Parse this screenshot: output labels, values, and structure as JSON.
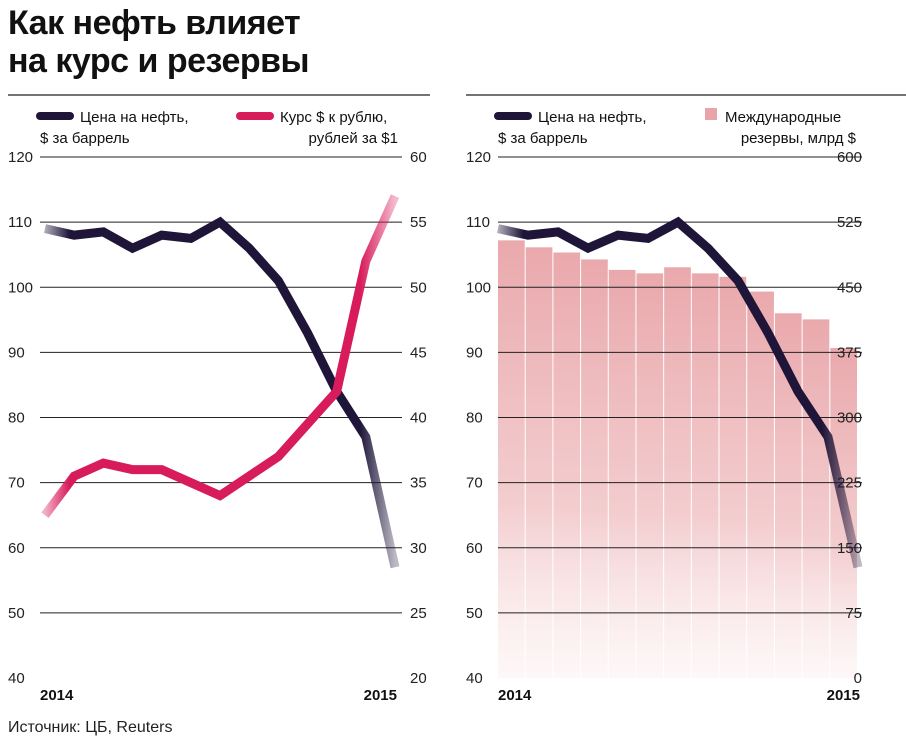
{
  "title_line1": "Как нефть влияет",
  "title_line2": "на курс и резервы",
  "source": "Источник: ЦБ, Reuters",
  "colors": {
    "oil": "#1e1538",
    "rate": "#d81b5a",
    "reserves": "#e8a4a8",
    "grid": "#222222"
  },
  "chart_data": [
    {
      "type": "line",
      "legend": [
        {
          "line1": "Цена на нефть,",
          "line2": "$ за баррель"
        },
        {
          "line1": "Курс $ к рублю,",
          "line2": "рублей за $1"
        }
      ],
      "x_labels": [
        "2014",
        "2015"
      ],
      "left_axis": {
        "ylim": [
          40,
          120
        ],
        "ticks": [
          "120",
          "110",
          "100",
          "90",
          "80",
          "70",
          "60",
          "50",
          "40"
        ]
      },
      "right_axis": {
        "ylim": [
          20,
          60
        ],
        "ticks": [
          "60",
          "55",
          "50",
          "45",
          "40",
          "35",
          "30",
          "25",
          "20"
        ]
      },
      "series": [
        {
          "name": "Цена на нефть, $ за баррель",
          "axis": "left",
          "values": [
            109,
            108,
            108.5,
            106,
            108,
            107.5,
            110,
            106,
            101,
            93,
            84,
            77,
            57
          ]
        },
        {
          "name": "Курс $ к рублю, рублей за $1",
          "axis": "right",
          "values": [
            32.5,
            35.5,
            36.5,
            36,
            36,
            35,
            34,
            35.5,
            37,
            39.5,
            42,
            52,
            57
          ]
        }
      ]
    },
    {
      "type": "bar+line",
      "legend": [
        {
          "line1": "Цена на нефть,",
          "line2": "$ за баррель"
        },
        {
          "line1": "Международные",
          "line2": "резервы, млрд $"
        }
      ],
      "x_labels": [
        "2014",
        "2015"
      ],
      "left_axis": {
        "ylim": [
          40,
          120
        ],
        "ticks": [
          "120",
          "110",
          "100",
          "90",
          "80",
          "70",
          "60",
          "50",
          "40"
        ]
      },
      "right_axis": {
        "ylim": [
          0,
          600
        ],
        "ticks": [
          "600",
          "525",
          "450",
          "375",
          "300",
          "225",
          "150",
          "75",
          "0"
        ]
      },
      "series": [
        {
          "name": "Цена на нефть, $ за баррель",
          "axis": "left",
          "values": [
            109,
            108,
            108.5,
            106,
            108,
            107.5,
            110,
            106,
            101,
            93,
            84,
            77,
            57
          ]
        },
        {
          "name": "Международные резервы, млрд $",
          "axis": "right",
          "kind": "bar",
          "values": [
            504,
            496,
            490,
            482,
            470,
            466,
            473,
            466,
            462,
            445,
            420,
            413,
            380
          ]
        }
      ]
    }
  ]
}
